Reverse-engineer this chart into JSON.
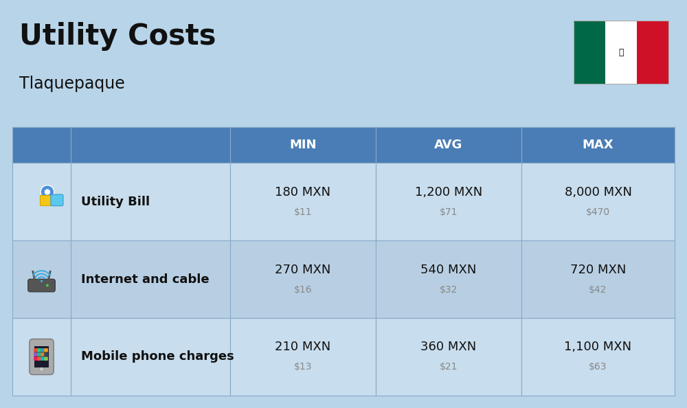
{
  "title": "Utility Costs",
  "subtitle": "Tlaquepaque",
  "background_color": "#b8d4e8",
  "header_bg_color": "#4a7db5",
  "header_text_color": "#ffffff",
  "row_bg_color_odd": "#c8dded",
  "row_bg_color_even": "#b8cfe3",
  "col_headers": [
    "MIN",
    "AVG",
    "MAX"
  ],
  "rows": [
    {
      "label": "Utility Bill",
      "min_mxn": "180 MXN",
      "min_usd": "$11",
      "avg_mxn": "1,200 MXN",
      "avg_usd": "$71",
      "max_mxn": "8,000 MXN",
      "max_usd": "$470"
    },
    {
      "label": "Internet and cable",
      "min_mxn": "270 MXN",
      "min_usd": "$16",
      "avg_mxn": "540 MXN",
      "avg_usd": "$32",
      "max_mxn": "720 MXN",
      "max_usd": "$42"
    },
    {
      "label": "Mobile phone charges",
      "min_mxn": "210 MXN",
      "min_usd": "$13",
      "avg_mxn": "360 MXN",
      "avg_usd": "$21",
      "max_mxn": "1,100 MXN",
      "max_usd": "$63"
    }
  ],
  "title_fontsize": 30,
  "subtitle_fontsize": 17,
  "header_fontsize": 13,
  "label_fontsize": 13,
  "value_fontsize": 13,
  "usd_fontsize": 10,
  "usd_color": "#888888",
  "label_color": "#111111",
  "value_color": "#111111",
  "cell_border_color": "#88aac8",
  "flag_green": "#006847",
  "flag_white": "#ffffff",
  "flag_red": "#ce1126"
}
